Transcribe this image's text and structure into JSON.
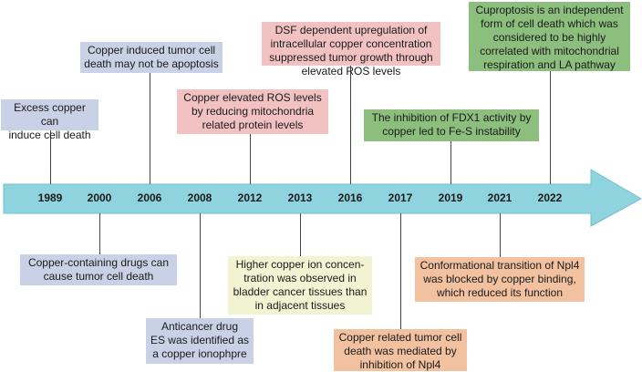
{
  "colors": {
    "arrow": "#8fd3df",
    "arrow_edge": "#6fc2cf",
    "blue": "#c9d1e6",
    "pink": "#f2c2c2",
    "green": "#8cbe7d",
    "yellow": "#f2f3d2",
    "orange": "#f1c1a0"
  },
  "timeline": {
    "years": [
      "1989",
      "2000",
      "2006",
      "2008",
      "2012",
      "2013",
      "2016",
      "2017",
      "2019",
      "2021",
      "2022"
    ]
  },
  "events": [
    {
      "year": "1989",
      "lines": [
        "Excess copper can",
        "induce cell death"
      ]
    },
    {
      "year": "2000",
      "lines": [
        "Copper-containing drugs can",
        "cause tumor cell death"
      ]
    },
    {
      "year": "2006",
      "lines": [
        "Copper induced tumor cell",
        "death may not be apoptosis"
      ]
    },
    {
      "year": "2008",
      "lines": [
        "Anticancer drug",
        "ES was identified as",
        "a copper ionophpre"
      ]
    },
    {
      "year": "2012",
      "lines": [
        "Copper elevated ROS levels",
        "by reducing mitochondria",
        "related protein levels"
      ]
    },
    {
      "year": "2013",
      "lines": [
        "Higher copper ion concen-",
        "tration was observed in",
        "bladder cancer tissues than",
        "in adjacent tissues"
      ]
    },
    {
      "year": "2016",
      "lines": [
        "DSF dependent upregulation of",
        "intracellular copper concentration",
        "suppressed tumor growth through",
        "elevated ROS levels"
      ]
    },
    {
      "year": "2017",
      "lines": [
        "Copper related tumor cell",
        "death was mediated by",
        "inhibition of Npl4"
      ]
    },
    {
      "year": "2019",
      "lines": [
        "The inhibition of FDX1 activity by",
        "copper led to Fe-S instability"
      ]
    },
    {
      "year": "2021",
      "lines": [
        "Conformational transition of Npl4",
        "was blocked by copper binding,",
        "which reduced its function"
      ]
    },
    {
      "year": "2022",
      "lines": [
        "Cuproptosis is an independent",
        "form of cell death which was",
        "considered to be highly",
        "correlated with mitochondrial",
        "respiration and LA pathway"
      ]
    }
  ]
}
